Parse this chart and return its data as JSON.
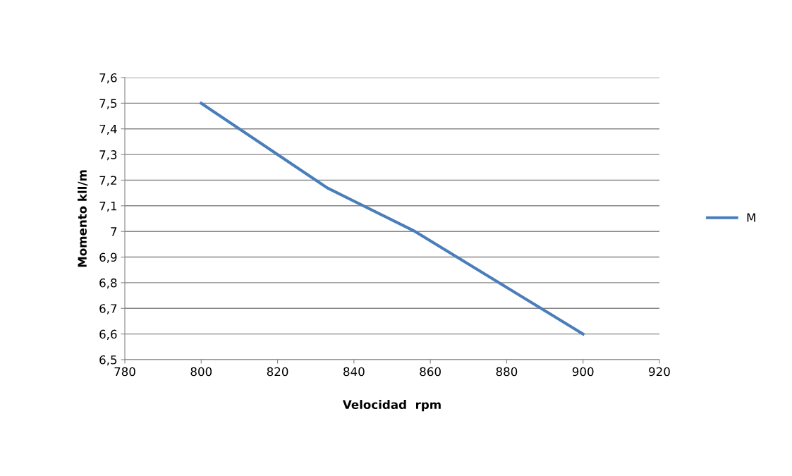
{
  "chart_data": {
    "type": "line",
    "xlabel": "Velocidad  rpm",
    "ylabel": "Momento kll/m",
    "x": [
      800,
      833,
      856,
      900
    ],
    "series": [
      {
        "name": "M",
        "color": "#4a7ebb",
        "values": [
          7.5,
          7.17,
          7.0,
          6.6
        ]
      }
    ],
    "xlim": [
      780,
      920
    ],
    "xticks": [
      780,
      800,
      820,
      840,
      860,
      880,
      900,
      920
    ],
    "ylim": [
      6.5,
      7.6
    ],
    "yticks": [
      {
        "value": 6.5,
        "label": "6,5"
      },
      {
        "value": 6.6,
        "label": "6,6"
      },
      {
        "value": 6.7,
        "label": "6,7"
      },
      {
        "value": 6.8,
        "label": "6,8"
      },
      {
        "value": 6.9,
        "label": "6,9"
      },
      7,
      {
        "value": 7.1,
        "label": "7,1"
      },
      {
        "value": 7.2,
        "label": "7,2"
      },
      {
        "value": 7.3,
        "label": "7,3"
      },
      {
        "value": 7.4,
        "label": "7,4"
      },
      {
        "value": 7.5,
        "label": "7,5"
      },
      {
        "value": 7.6,
        "label": "7,6"
      }
    ],
    "grid": "y",
    "legend": "right",
    "marker": "none",
    "line_style": "solid"
  }
}
